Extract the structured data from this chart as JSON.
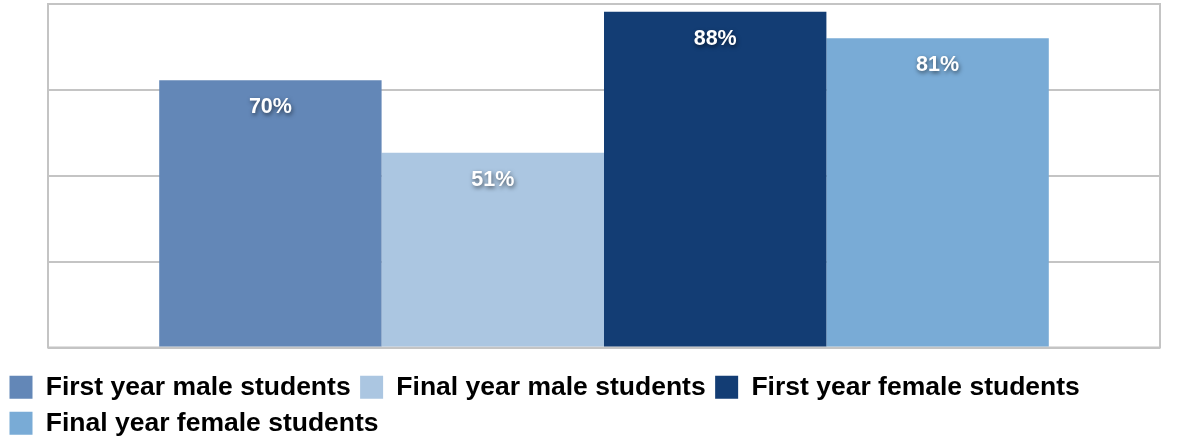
{
  "chart_data": {
    "type": "bar",
    "categories": [
      null
    ],
    "series": [
      {
        "name": "First year male students",
        "color": "#6387b7",
        "values": [
          70
        ],
        "value_labels": [
          "70%"
        ]
      },
      {
        "name": "Final year male students",
        "color": "#abc6e1",
        "values": [
          51
        ],
        "value_labels": [
          "51%"
        ]
      },
      {
        "name": "First year female students",
        "color": "#133d74",
        "values": [
          88
        ],
        "value_labels": [
          "88%"
        ]
      },
      {
        "name": "Final year female students",
        "color": "#79abd6",
        "values": [
          81
        ],
        "value_labels": [
          "81%"
        ]
      }
    ],
    "ylim": [
      0,
      90
    ],
    "yticks": [
      {
        "value": 0,
        "label": null
      },
      {
        "value": 22.5,
        "label": null
      },
      {
        "value": 45,
        "label": null
      },
      {
        "value": 67.5,
        "label": null
      },
      {
        "value": 90,
        "label": null
      }
    ],
    "grid": "y",
    "legend": "bottom"
  }
}
